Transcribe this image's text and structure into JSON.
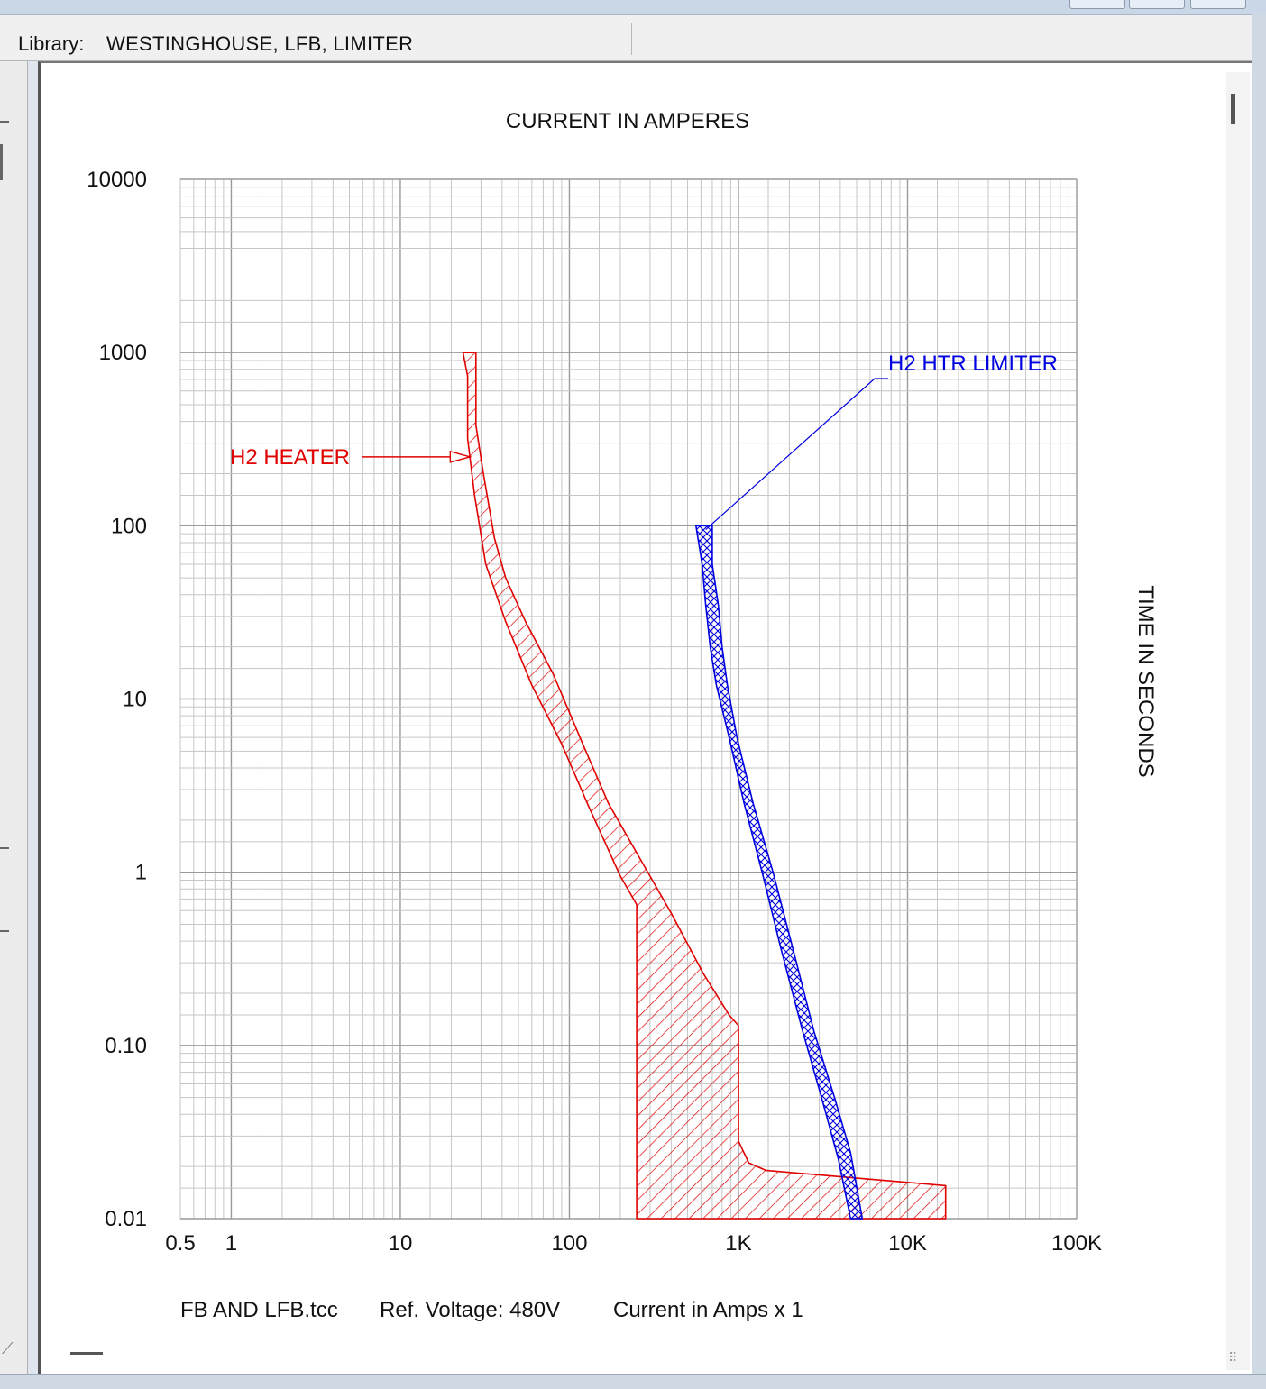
{
  "library": {
    "label": "Library:",
    "value": "WESTINGHOUSE, LFB, LIMITER"
  },
  "chart_data": {
    "type": "line",
    "title": "CURRENT IN AMPERES",
    "xlabel": "CURRENT IN AMPERES",
    "ylabel": "TIME IN SECONDS",
    "xscale": "log",
    "yscale": "log",
    "xlim": [
      0.5,
      100000
    ],
    "ylim": [
      0.01,
      10000
    ],
    "xticks": [
      {
        "v": 0.5,
        "label": "0.5"
      },
      {
        "v": 1,
        "label": "1"
      },
      {
        "v": 10,
        "label": "10"
      },
      {
        "v": 100,
        "label": "100"
      },
      {
        "v": 1000,
        "label": "1K"
      },
      {
        "v": 10000,
        "label": "10K"
      },
      {
        "v": 100000,
        "label": "100K"
      }
    ],
    "yticks": [
      {
        "v": 0.01,
        "label": "0.01"
      },
      {
        "v": 0.1,
        "label": "0.10"
      },
      {
        "v": 1,
        "label": "1"
      },
      {
        "v": 10,
        "label": "10"
      },
      {
        "v": 100,
        "label": "100"
      },
      {
        "v": 1000,
        "label": "1000"
      },
      {
        "v": 10000,
        "label": "10000"
      }
    ],
    "grid": true,
    "series": [
      {
        "name": "H2 HEATER",
        "color": "#e00000",
        "hatch": "diagonal",
        "label_point": [
          26.5,
          250
        ],
        "polygon": [
          [
            23.5,
            1000
          ],
          [
            28,
            1000
          ],
          [
            28,
            380
          ],
          [
            31,
            200
          ],
          [
            36,
            85
          ],
          [
            42,
            50
          ],
          [
            55,
            28
          ],
          [
            80,
            14
          ],
          [
            120,
            5.5
          ],
          [
            170,
            2.5
          ],
          [
            255,
            1.25
          ],
          [
            400,
            0.58
          ],
          [
            620,
            0.26
          ],
          [
            880,
            0.15
          ],
          [
            1000,
            0.13
          ],
          [
            1000,
            0.028
          ],
          [
            1150,
            0.021
          ],
          [
            1450,
            0.019
          ],
          [
            5500,
            0.017
          ],
          [
            16800,
            0.0155
          ],
          [
            16800,
            0.01
          ],
          [
            250,
            0.01
          ],
          [
            250,
            0.65
          ],
          [
            200,
            0.95
          ],
          [
            130,
            2.4
          ],
          [
            90,
            5.5
          ],
          [
            60,
            12
          ],
          [
            42,
            28
          ],
          [
            32,
            60
          ],
          [
            27.5,
            150
          ],
          [
            25,
            320
          ],
          [
            25,
            730
          ],
          [
            23.5,
            1000
          ]
        ]
      },
      {
        "name": "H2 HTR LIMITER",
        "color": "#0000e0",
        "hatch": "cross",
        "label_point": [
          640,
          95
        ],
        "polygon": [
          [
            560,
            100
          ],
          [
            700,
            100
          ],
          [
            700,
            60
          ],
          [
            760,
            35
          ],
          [
            800,
            20
          ],
          [
            860,
            12
          ],
          [
            980,
            6
          ],
          [
            1220,
            2.5
          ],
          [
            1600,
            1
          ],
          [
            2100,
            0.36
          ],
          [
            2800,
            0.12
          ],
          [
            3700,
            0.05
          ],
          [
            4600,
            0.024
          ],
          [
            5400,
            0.01
          ],
          [
            4600,
            0.01
          ],
          [
            3900,
            0.022
          ],
          [
            3100,
            0.05
          ],
          [
            2400,
            0.12
          ],
          [
            1800,
            0.35
          ],
          [
            1380,
            1
          ],
          [
            1080,
            2.5
          ],
          [
            880,
            6
          ],
          [
            740,
            12
          ],
          [
            680,
            20
          ],
          [
            640,
            35
          ],
          [
            610,
            60
          ],
          [
            560,
            100
          ]
        ]
      }
    ],
    "footer": {
      "file": "FB AND LFB.tcc",
      "voltage": "Ref. Voltage: 480V",
      "multiplier": "Current in Amps x 1"
    }
  }
}
